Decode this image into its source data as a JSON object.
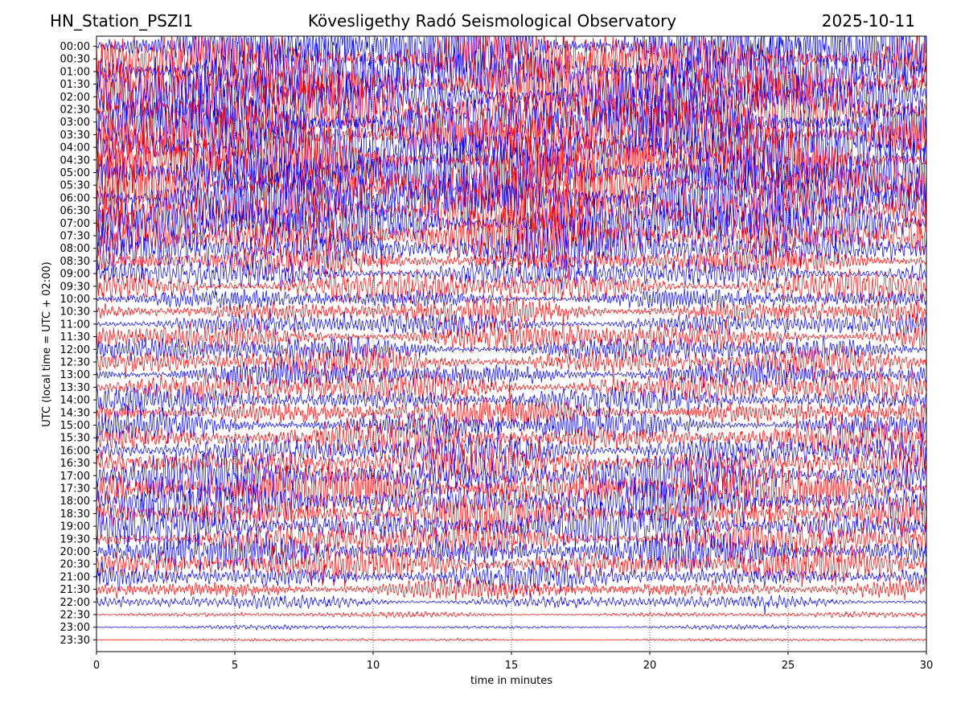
{
  "header": {
    "station": "HN_Station_PSZI1",
    "observatory": "Kövesligethy Radó Seismological Observatory",
    "date": "2025-10-11"
  },
  "chart_data": {
    "type": "line",
    "title": "Kövesligethy Radó Seismological Observatory",
    "xlabel": "time in minutes",
    "ylabel": "UTC (local time = UTC + 02:00)",
    "xlim": [
      0,
      30
    ],
    "x_ticks": [
      0,
      5,
      10,
      15,
      20,
      25,
      30
    ],
    "x_gridlines": "dotted vertical at 5, 10, 15, 20, 25",
    "colors": [
      "#ff0000",
      "#0000ff"
    ],
    "color_cycle": "rows alternate: 00:00 blue, 00:30 red, ...",
    "rows": [
      {
        "label": "00:00",
        "amplitude": 1.0
      },
      {
        "label": "00:30",
        "amplitude": 1.0
      },
      {
        "label": "01:00",
        "amplitude": 1.0
      },
      {
        "label": "01:30",
        "amplitude": 1.0
      },
      {
        "label": "02:00",
        "amplitude": 1.0
      },
      {
        "label": "02:30",
        "amplitude": 1.0
      },
      {
        "label": "03:00",
        "amplitude": 1.0
      },
      {
        "label": "03:30",
        "amplitude": 1.0
      },
      {
        "label": "04:00",
        "amplitude": 1.0
      },
      {
        "label": "04:30",
        "amplitude": 1.0
      },
      {
        "label": "05:00",
        "amplitude": 1.0
      },
      {
        "label": "05:30",
        "amplitude": 1.0
      },
      {
        "label": "06:00",
        "amplitude": 1.0
      },
      {
        "label": "06:30",
        "amplitude": 1.0
      },
      {
        "label": "07:00",
        "amplitude": 0.9
      },
      {
        "label": "07:30",
        "amplitude": 0.85
      },
      {
        "label": "08:00",
        "amplitude": 0.75
      },
      {
        "label": "08:30",
        "amplitude": 0.45
      },
      {
        "label": "09:00",
        "amplitude": 0.45
      },
      {
        "label": "09:30",
        "amplitude": 0.5
      },
      {
        "label": "10:00",
        "amplitude": 0.3
      },
      {
        "label": "10:30",
        "amplitude": 0.4
      },
      {
        "label": "11:00",
        "amplitude": 0.35
      },
      {
        "label": "11:30",
        "amplitude": 0.45
      },
      {
        "label": "12:00",
        "amplitude": 0.4
      },
      {
        "label": "12:30",
        "amplitude": 0.45
      },
      {
        "label": "13:00",
        "amplitude": 0.4
      },
      {
        "label": "13:30",
        "amplitude": 0.5
      },
      {
        "label": "14:00",
        "amplitude": 0.4
      },
      {
        "label": "14:30",
        "amplitude": 0.45
      },
      {
        "label": "15:00",
        "amplitude": 0.45
      },
      {
        "label": "15:30",
        "amplitude": 0.5
      },
      {
        "label": "16:00",
        "amplitude": 0.55
      },
      {
        "label": "16:30",
        "amplitude": 0.6
      },
      {
        "label": "17:00",
        "amplitude": 0.7
      },
      {
        "label": "17:30",
        "amplitude": 0.7
      },
      {
        "label": "18:00",
        "amplitude": 0.65
      },
      {
        "label": "18:30",
        "amplitude": 0.6
      },
      {
        "label": "19:00",
        "amplitude": 0.6
      },
      {
        "label": "19:30",
        "amplitude": 0.55
      },
      {
        "label": "20:00",
        "amplitude": 0.55
      },
      {
        "label": "20:30",
        "amplitude": 0.55
      },
      {
        "label": "21:00",
        "amplitude": 0.4
      },
      {
        "label": "21:30",
        "amplitude": 0.3
      },
      {
        "label": "22:00",
        "amplitude": 0.2
      },
      {
        "label": "22:30",
        "amplitude": 0.08
      },
      {
        "label": "23:00",
        "amplitude": 0.06
      },
      {
        "label": "23:30",
        "amplitude": 0.04
      }
    ]
  }
}
